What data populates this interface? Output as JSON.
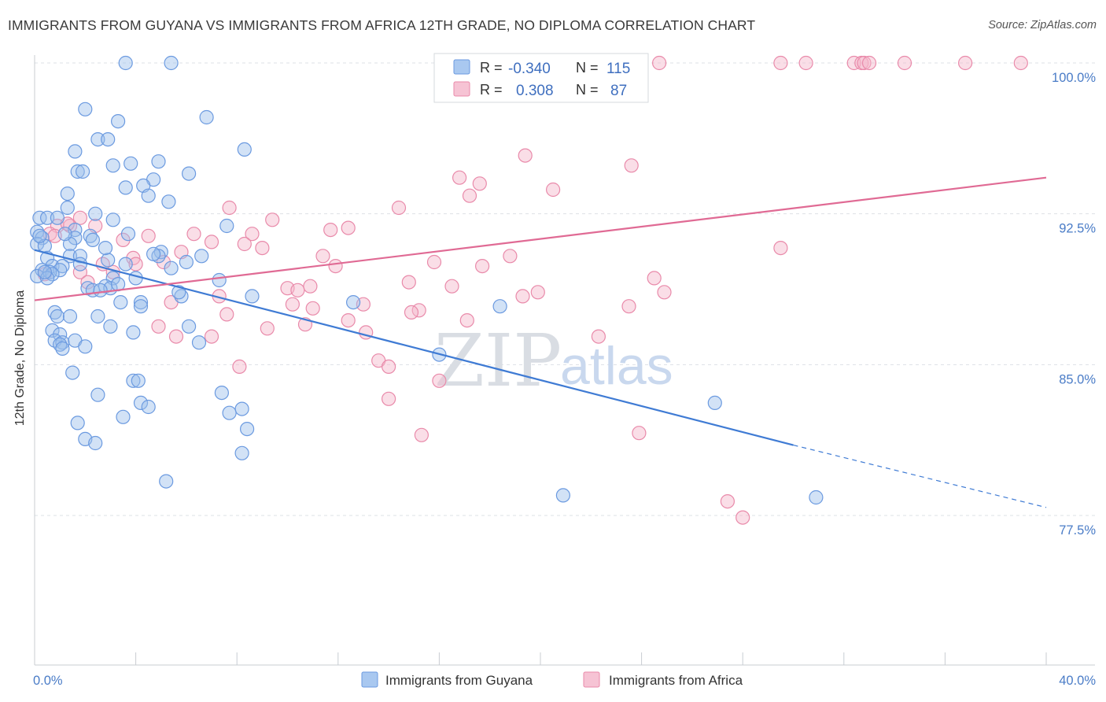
{
  "title": "IMMIGRANTS FROM GUYANA VS IMMIGRANTS FROM AFRICA 12TH GRADE, NO DIPLOMA CORRELATION CHART",
  "source": "Source: ZipAtlas.com",
  "watermark": {
    "zip": "ZIP",
    "atlas": "atlas"
  },
  "colors": {
    "guyana_fill": "#9cbfec",
    "guyana_stroke": "#6b9ae0",
    "guyana_line": "#3f7bd4",
    "africa_fill": "#f3b5c9",
    "africa_stroke": "#e98aaa",
    "africa_line": "#e06a94",
    "grid": "#dde0e5",
    "tick_text": "#4a7cc7"
  },
  "legend": {
    "rows": [
      {
        "r_label": "R =",
        "r_value": "-0.340",
        "n_label": "N =",
        "n_value": "115"
      },
      {
        "r_label": "R =",
        "r_value": "0.308",
        "n_label": "N =",
        "n_value": "87"
      }
    ]
  },
  "bottom_legend": [
    "Immigrants from Guyana",
    "Immigrants from Africa"
  ],
  "chart_data": {
    "type": "scatter",
    "title": "IMMIGRANTS FROM GUYANA VS IMMIGRANTS FROM AFRICA 12TH GRADE, NO DIPLOMA CORRELATION CHART",
    "xlabel": "",
    "ylabel": "12th Grade, No Diploma",
    "xlim": [
      0,
      40
    ],
    "ylim": [
      70.0,
      101.0
    ],
    "x_ticks": [
      "0.0%",
      "40.0%"
    ],
    "y_ticks": [
      {
        "value": 100.0,
        "label": "100.0%"
      },
      {
        "value": 92.5,
        "label": "92.5%"
      },
      {
        "value": 85.0,
        "label": "85.0%"
      },
      {
        "value": 77.5,
        "label": "77.5%"
      }
    ],
    "grid": true,
    "legend_position": "top-center",
    "series": [
      {
        "name": "Immigrants from Guyana",
        "r": -0.34,
        "n": 115,
        "trend": {
          "x_start": 0.0,
          "y_start": 90.7,
          "x_solid_end": 30.0,
          "y_solid_end": 81.0,
          "x_dash_end": 40.0,
          "y_dash_end": 77.9
        },
        "points": [
          [
            3.6,
            100.0
          ],
          [
            5.4,
            100.0
          ],
          [
            6.8,
            97.3
          ],
          [
            3.3,
            97.1
          ],
          [
            2.0,
            97.7
          ],
          [
            2.5,
            96.2
          ],
          [
            2.9,
            96.2
          ],
          [
            8.3,
            95.7
          ],
          [
            1.6,
            95.6
          ],
          [
            4.9,
            95.1
          ],
          [
            3.8,
            95.0
          ],
          [
            3.1,
            94.9
          ],
          [
            1.7,
            94.6
          ],
          [
            1.9,
            94.6
          ],
          [
            6.1,
            94.5
          ],
          [
            4.7,
            94.2
          ],
          [
            4.3,
            93.9
          ],
          [
            3.6,
            93.8
          ],
          [
            1.3,
            93.5
          ],
          [
            4.5,
            93.4
          ],
          [
            5.3,
            93.1
          ],
          [
            1.3,
            92.8
          ],
          [
            2.4,
            92.5
          ],
          [
            0.2,
            92.3
          ],
          [
            0.5,
            92.3
          ],
          [
            3.1,
            92.2
          ],
          [
            7.6,
            91.9
          ],
          [
            1.6,
            91.7
          ],
          [
            0.1,
            91.6
          ],
          [
            3.7,
            91.5
          ],
          [
            2.2,
            91.4
          ],
          [
            0.3,
            91.3
          ],
          [
            1.6,
            91.3
          ],
          [
            2.3,
            91.2
          ],
          [
            0.1,
            91.0
          ],
          [
            1.4,
            91.0
          ],
          [
            0.4,
            90.9
          ],
          [
            5.0,
            90.6
          ],
          [
            6.6,
            90.4
          ],
          [
            4.9,
            90.4
          ],
          [
            1.4,
            90.4
          ],
          [
            1.8,
            90.4
          ],
          [
            0.5,
            90.3
          ],
          [
            2.9,
            90.2
          ],
          [
            6.0,
            90.1
          ],
          [
            3.6,
            90.0
          ],
          [
            0.7,
            89.9
          ],
          [
            1.1,
            89.9
          ],
          [
            5.4,
            89.8
          ],
          [
            0.3,
            89.7
          ],
          [
            1.0,
            89.7
          ],
          [
            0.6,
            89.6
          ],
          [
            0.7,
            89.5
          ],
          [
            0.1,
            89.4
          ],
          [
            0.5,
            89.3
          ],
          [
            3.1,
            89.3
          ],
          [
            7.3,
            89.2
          ],
          [
            4.0,
            89.3
          ],
          [
            2.8,
            88.9
          ],
          [
            2.1,
            88.8
          ],
          [
            3.0,
            88.8
          ],
          [
            2.3,
            88.7
          ],
          [
            5.8,
            88.4
          ],
          [
            8.6,
            88.4
          ],
          [
            4.2,
            88.1
          ],
          [
            3.4,
            88.1
          ],
          [
            4.2,
            87.9
          ],
          [
            12.6,
            88.1
          ],
          [
            18.4,
            87.9
          ],
          [
            0.8,
            87.6
          ],
          [
            2.5,
            87.4
          ],
          [
            0.9,
            87.4
          ],
          [
            1.4,
            87.4
          ],
          [
            3.0,
            86.9
          ],
          [
            6.1,
            86.9
          ],
          [
            0.7,
            86.7
          ],
          [
            1.0,
            86.5
          ],
          [
            3.9,
            86.6
          ],
          [
            0.8,
            86.2
          ],
          [
            1.1,
            86.1
          ],
          [
            1.6,
            86.2
          ],
          [
            6.5,
            86.1
          ],
          [
            1.0,
            86.0
          ],
          [
            2.0,
            85.9
          ],
          [
            1.1,
            85.8
          ],
          [
            16.0,
            85.5
          ],
          [
            1.5,
            84.6
          ],
          [
            3.9,
            84.2
          ],
          [
            4.1,
            84.2
          ],
          [
            2.5,
            83.5
          ],
          [
            7.4,
            83.6
          ],
          [
            4.2,
            83.1
          ],
          [
            4.5,
            82.9
          ],
          [
            8.2,
            82.8
          ],
          [
            26.9,
            83.1
          ],
          [
            7.7,
            82.6
          ],
          [
            3.5,
            82.4
          ],
          [
            1.7,
            82.1
          ],
          [
            8.4,
            81.8
          ],
          [
            2.0,
            81.3
          ],
          [
            2.4,
            81.1
          ],
          [
            8.2,
            80.6
          ],
          [
            5.2,
            79.2
          ],
          [
            20.9,
            78.5
          ],
          [
            30.9,
            78.4
          ],
          [
            1.8,
            90.0
          ],
          [
            2.6,
            88.7
          ],
          [
            0.2,
            91.4
          ],
          [
            1.2,
            91.5
          ],
          [
            0.9,
            92.3
          ],
          [
            3.3,
            89.0
          ],
          [
            4.7,
            90.5
          ],
          [
            0.4,
            89.6
          ],
          [
            2.8,
            90.8
          ],
          [
            5.7,
            88.6
          ]
        ]
      },
      {
        "name": "Immigrants from Africa",
        "r": 0.308,
        "n": 87,
        "trend": {
          "x_start": 0.0,
          "y_start": 88.2,
          "x_end": 40.0,
          "y_end": 94.3
        },
        "points": [
          [
            21.0,
            100.0
          ],
          [
            24.7,
            100.0
          ],
          [
            29.5,
            100.0
          ],
          [
            30.5,
            100.0
          ],
          [
            32.4,
            100.0
          ],
          [
            32.7,
            100.0
          ],
          [
            32.8,
            100.0
          ],
          [
            33.0,
            100.0
          ],
          [
            34.4,
            100.0
          ],
          [
            36.8,
            100.0
          ],
          [
            39.0,
            100.0
          ],
          [
            19.4,
            95.4
          ],
          [
            23.6,
            94.9
          ],
          [
            16.8,
            94.3
          ],
          [
            17.6,
            94.0
          ],
          [
            20.5,
            93.7
          ],
          [
            17.2,
            93.4
          ],
          [
            7.7,
            92.8
          ],
          [
            14.4,
            92.8
          ],
          [
            1.8,
            92.3
          ],
          [
            9.4,
            92.2
          ],
          [
            12.4,
            91.8
          ],
          [
            0.9,
            91.9
          ],
          [
            1.4,
            91.9
          ],
          [
            2.4,
            91.9
          ],
          [
            11.7,
            91.7
          ],
          [
            6.3,
            91.5
          ],
          [
            0.6,
            91.5
          ],
          [
            0.8,
            91.4
          ],
          [
            4.5,
            91.4
          ],
          [
            8.6,
            91.5
          ],
          [
            3.5,
            91.2
          ],
          [
            7.0,
            91.1
          ],
          [
            8.3,
            91.0
          ],
          [
            9.0,
            90.8
          ],
          [
            29.5,
            90.8
          ],
          [
            5.8,
            90.6
          ],
          [
            11.4,
            90.4
          ],
          [
            18.8,
            90.4
          ],
          [
            3.9,
            90.3
          ],
          [
            15.8,
            90.1
          ],
          [
            4.0,
            90.0
          ],
          [
            5.1,
            90.1
          ],
          [
            11.9,
            89.9
          ],
          [
            17.7,
            89.9
          ],
          [
            0.4,
            89.5
          ],
          [
            1.8,
            89.6
          ],
          [
            24.5,
            89.3
          ],
          [
            2.1,
            89.1
          ],
          [
            14.8,
            89.1
          ],
          [
            10.9,
            88.9
          ],
          [
            16.5,
            88.9
          ],
          [
            10.0,
            88.8
          ],
          [
            10.4,
            88.7
          ],
          [
            19.9,
            88.6
          ],
          [
            24.9,
            88.6
          ],
          [
            19.3,
            88.4
          ],
          [
            7.3,
            88.4
          ],
          [
            5.4,
            88.1
          ],
          [
            10.2,
            88.0
          ],
          [
            13.0,
            88.0
          ],
          [
            23.5,
            87.9
          ],
          [
            11.0,
            87.8
          ],
          [
            15.2,
            87.7
          ],
          [
            14.9,
            87.6
          ],
          [
            7.6,
            87.5
          ],
          [
            12.4,
            87.2
          ],
          [
            17.1,
            87.2
          ],
          [
            10.7,
            87.0
          ],
          [
            4.9,
            86.9
          ],
          [
            9.2,
            86.8
          ],
          [
            13.1,
            86.6
          ],
          [
            5.6,
            86.4
          ],
          [
            22.3,
            86.4
          ],
          [
            7.0,
            86.4
          ],
          [
            13.6,
            85.2
          ],
          [
            14.0,
            84.9
          ],
          [
            8.1,
            84.9
          ],
          [
            16.0,
            84.2
          ],
          [
            14.0,
            83.3
          ],
          [
            15.3,
            81.5
          ],
          [
            23.9,
            81.6
          ],
          [
            27.4,
            78.2
          ],
          [
            28.0,
            77.4
          ],
          [
            3.1,
            89.6
          ],
          [
            2.7,
            90.0
          ],
          [
            1.3,
            92.0
          ]
        ]
      }
    ]
  }
}
